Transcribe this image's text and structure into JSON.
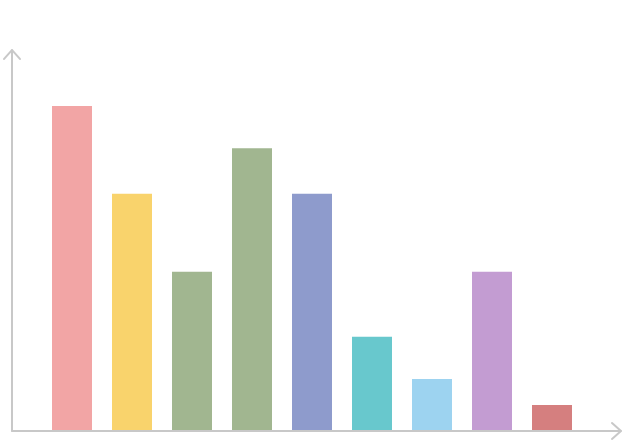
{
  "chart_data": {
    "type": "bar",
    "title": "",
    "xlabel": "",
    "ylabel": "",
    "grid": false,
    "legend": "none",
    "axis_color": "#c8c8c8",
    "ylim": [
      0,
      100
    ],
    "values": [
      100,
      73,
      49,
      87,
      73,
      29,
      16,
      49,
      8
    ],
    "colors": [
      "#f2a5a5",
      "#f9d36c",
      "#a1b690",
      "#a1b690",
      "#8e9bcc",
      "#68c8cd",
      "#9dd3f0",
      "#c39cd2",
      "#d57f7f"
    ]
  }
}
